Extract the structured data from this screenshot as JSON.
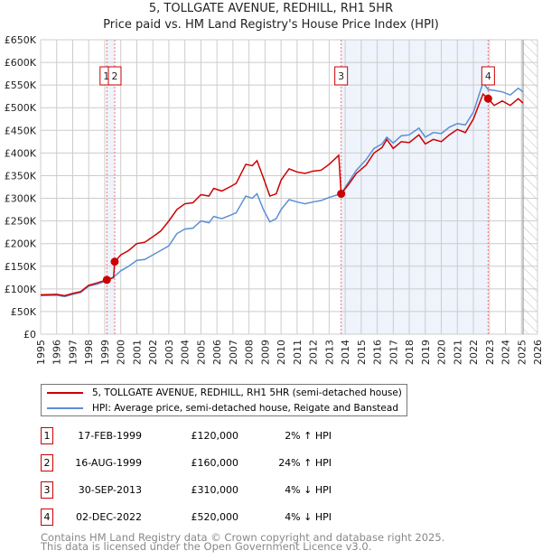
{
  "title": "5, TOLLGATE AVENUE, REDHILL, RH1 5HR",
  "subtitle": "Price paid vs. HM Land Registry's House Price Index (HPI)",
  "chart_data": {
    "type": "line",
    "xlim": [
      1995,
      2026
    ],
    "ylim": [
      0,
      650000
    ],
    "x_ticks": [
      "1995",
      "1996",
      "1997",
      "1998",
      "1999",
      "2000",
      "2001",
      "2002",
      "2003",
      "2004",
      "2005",
      "2006",
      "2007",
      "2008",
      "2009",
      "2010",
      "2011",
      "2012",
      "2013",
      "2014",
      "2015",
      "2016",
      "2017",
      "2018",
      "2019",
      "2020",
      "2021",
      "2022",
      "2023",
      "2024",
      "2025",
      "2026"
    ],
    "y_ticks": [
      "£0",
      "£50K",
      "£100K",
      "£150K",
      "£200K",
      "£250K",
      "£300K",
      "£350K",
      "£400K",
      "£450K",
      "£500K",
      "£550K",
      "£600K",
      "£650K"
    ],
    "grid": true,
    "colors": {
      "property": "#cc0000",
      "hpi": "#5b8fd4"
    },
    "shaded_ranges": [
      [
        1999.13,
        1999.62
      ],
      [
        2013.75,
        2022.92
      ]
    ],
    "hatched_after": 2025.1,
    "series": [
      {
        "name": "5, TOLLGATE AVENUE, REDHILL, RH1 5HR (semi-detached house)",
        "points": [
          [
            1995,
            87000
          ],
          [
            1996,
            88000
          ],
          [
            1996.5,
            85000
          ],
          [
            1997,
            90000
          ],
          [
            1997.5,
            94000
          ],
          [
            1998,
            108000
          ],
          [
            1998.5,
            113000
          ],
          [
            1999.13,
            120000
          ],
          [
            1999.55,
            125000
          ],
          [
            1999.62,
            160000
          ],
          [
            2000,
            175000
          ],
          [
            2000.5,
            185000
          ],
          [
            2001,
            200000
          ],
          [
            2001.5,
            203000
          ],
          [
            2002,
            215000
          ],
          [
            2002.5,
            228000
          ],
          [
            2003,
            250000
          ],
          [
            2003.5,
            275000
          ],
          [
            2004,
            288000
          ],
          [
            2004.5,
            290000
          ],
          [
            2005,
            308000
          ],
          [
            2005.5,
            305000
          ],
          [
            2005.8,
            322000
          ],
          [
            2006.3,
            316000
          ],
          [
            2006.8,
            325000
          ],
          [
            2007.2,
            333000
          ],
          [
            2007.8,
            375000
          ],
          [
            2008.2,
            372000
          ],
          [
            2008.5,
            383000
          ],
          [
            2008.9,
            345000
          ],
          [
            2009.3,
            305000
          ],
          [
            2009.7,
            310000
          ],
          [
            2010,
            340000
          ],
          [
            2010.5,
            365000
          ],
          [
            2011,
            358000
          ],
          [
            2011.5,
            355000
          ],
          [
            2012,
            360000
          ],
          [
            2012.5,
            362000
          ],
          [
            2013,
            375000
          ],
          [
            2013.6,
            395000
          ],
          [
            2013.75,
            310000
          ],
          [
            2014.2,
            330000
          ],
          [
            2014.7,
            355000
          ],
          [
            2015.3,
            373000
          ],
          [
            2015.8,
            400000
          ],
          [
            2016.3,
            412000
          ],
          [
            2016.6,
            430000
          ],
          [
            2017,
            410000
          ],
          [
            2017.5,
            425000
          ],
          [
            2018,
            423000
          ],
          [
            2018.6,
            440000
          ],
          [
            2019,
            420000
          ],
          [
            2019.5,
            430000
          ],
          [
            2020,
            425000
          ],
          [
            2020.5,
            440000
          ],
          [
            2021,
            452000
          ],
          [
            2021.5,
            445000
          ],
          [
            2022,
            475000
          ],
          [
            2022.6,
            530000
          ],
          [
            2022.92,
            520000
          ],
          [
            2023.3,
            505000
          ],
          [
            2023.8,
            515000
          ],
          [
            2024.3,
            505000
          ],
          [
            2024.8,
            520000
          ],
          [
            2025.1,
            510000
          ]
        ]
      },
      {
        "name": "HPI: Average price, semi-detached house, Reigate and Banstead",
        "points": [
          [
            1995,
            85000
          ],
          [
            1996,
            86000
          ],
          [
            1996.5,
            83000
          ],
          [
            1997,
            88000
          ],
          [
            1997.5,
            92000
          ],
          [
            1998,
            106000
          ],
          [
            1998.5,
            110000
          ],
          [
            1999.13,
            118000
          ],
          [
            1999.62,
            128000
          ],
          [
            2000,
            140000
          ],
          [
            2000.5,
            150000
          ],
          [
            2001,
            163000
          ],
          [
            2001.5,
            165000
          ],
          [
            2002,
            175000
          ],
          [
            2002.5,
            185000
          ],
          [
            2003,
            195000
          ],
          [
            2003.5,
            222000
          ],
          [
            2004,
            232000
          ],
          [
            2004.5,
            234000
          ],
          [
            2005,
            250000
          ],
          [
            2005.5,
            246000
          ],
          [
            2005.8,
            260000
          ],
          [
            2006.3,
            255000
          ],
          [
            2006.8,
            262000
          ],
          [
            2007.2,
            268000
          ],
          [
            2007.8,
            305000
          ],
          [
            2008.2,
            300000
          ],
          [
            2008.5,
            310000
          ],
          [
            2008.9,
            275000
          ],
          [
            2009.3,
            248000
          ],
          [
            2009.7,
            255000
          ],
          [
            2010,
            275000
          ],
          [
            2010.5,
            297000
          ],
          [
            2011,
            292000
          ],
          [
            2011.5,
            288000
          ],
          [
            2012,
            292000
          ],
          [
            2012.5,
            295000
          ],
          [
            2013,
            302000
          ],
          [
            2013.75,
            310000
          ],
          [
            2014.2,
            335000
          ],
          [
            2014.7,
            362000
          ],
          [
            2015.3,
            385000
          ],
          [
            2015.8,
            410000
          ],
          [
            2016.3,
            420000
          ],
          [
            2016.6,
            435000
          ],
          [
            2017,
            422000
          ],
          [
            2017.5,
            438000
          ],
          [
            2018,
            440000
          ],
          [
            2018.6,
            455000
          ],
          [
            2019,
            435000
          ],
          [
            2019.5,
            445000
          ],
          [
            2020,
            443000
          ],
          [
            2020.5,
            457000
          ],
          [
            2021,
            465000
          ],
          [
            2021.5,
            462000
          ],
          [
            2022,
            490000
          ],
          [
            2022.6,
            555000
          ],
          [
            2022.92,
            540000
          ],
          [
            2023.3,
            538000
          ],
          [
            2023.8,
            535000
          ],
          [
            2024.3,
            528000
          ],
          [
            2024.8,
            543000
          ],
          [
            2025.1,
            535000
          ]
        ]
      }
    ],
    "sales": [
      {
        "label": "1",
        "x": 1999.13,
        "y": 120000
      },
      {
        "label": "2",
        "x": 1999.62,
        "y": 160000
      },
      {
        "label": "3",
        "x": 2013.75,
        "y": 310000
      },
      {
        "label": "4",
        "x": 2022.92,
        "y": 520000
      }
    ]
  },
  "legend": {
    "property": "5, TOLLGATE AVENUE, REDHILL, RH1 5HR (semi-detached house)",
    "hpi": "HPI: Average price, semi-detached house, Reigate and Banstead"
  },
  "transactions": [
    {
      "num": "1",
      "date": "17-FEB-1999",
      "price": "£120,000",
      "hpi": "2% ↑ HPI"
    },
    {
      "num": "2",
      "date": "16-AUG-1999",
      "price": "£160,000",
      "hpi": "24% ↑ HPI"
    },
    {
      "num": "3",
      "date": "30-SEP-2013",
      "price": "£310,000",
      "hpi": "4% ↓ HPI"
    },
    {
      "num": "4",
      "date": "02-DEC-2022",
      "price": "£520,000",
      "hpi": "4% ↓ HPI"
    }
  ],
  "footer": {
    "line1": "Contains HM Land Registry data © Crown copyright and database right 2025.",
    "line2": "This data is licensed under the Open Government Licence v3.0."
  }
}
